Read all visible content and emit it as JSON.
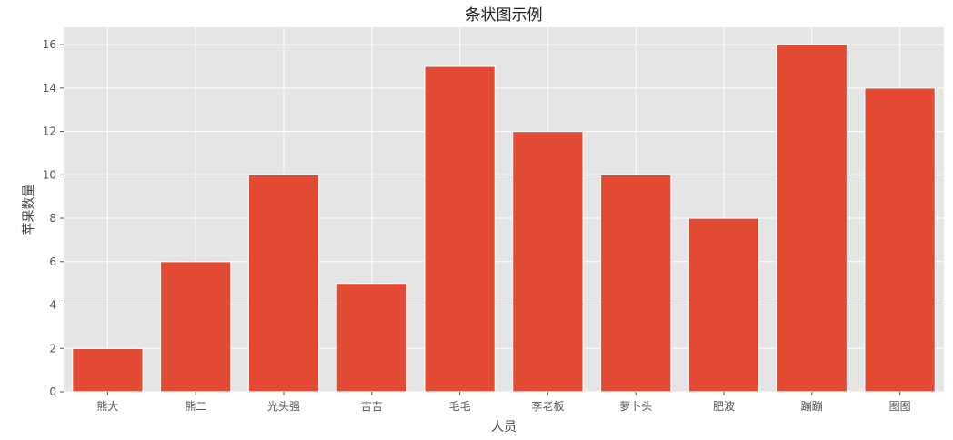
{
  "chart_data": {
    "type": "bar",
    "title": "条状图示例",
    "xlabel": "人员",
    "ylabel": "苹果数量",
    "categories": [
      "熊大",
      "熊二",
      "光头强",
      "吉吉",
      "毛毛",
      "李老板",
      "萝卜头",
      "肥波",
      "蹦蹦",
      "图图"
    ],
    "values": [
      2,
      6,
      10,
      5,
      15,
      12,
      10,
      8,
      16,
      14
    ],
    "ylim": [
      0,
      16.8
    ],
    "yticks": [
      0,
      2,
      4,
      6,
      8,
      10,
      12,
      14,
      16
    ],
    "grid": true,
    "legend": "none",
    "colors": {
      "bar": "#E24A33",
      "background": "#E5E5E5",
      "grid": "#FFFFFF"
    }
  }
}
